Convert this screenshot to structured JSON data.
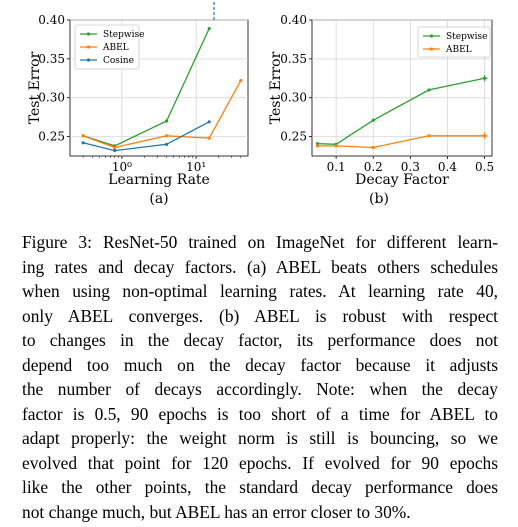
{
  "chart_data": [
    {
      "type": "line",
      "xscale": "log",
      "xlabel": "Learning Rate",
      "ylabel": "Test Error",
      "sublabel": "(a)",
      "ylim": [
        0.225,
        0.4
      ],
      "yticks": [
        "0.25",
        "0.30",
        "0.35",
        "0.40"
      ],
      "xticks": [
        "10⁰",
        "10¹"
      ],
      "grid": true,
      "legend": "top-left",
      "series": [
        {
          "name": "Stepwise",
          "color": "#2ca02c",
          "x": [
            0.3,
            0.8,
            4,
            15
          ],
          "y": [
            0.251,
            0.238,
            0.27,
            0.389
          ]
        },
        {
          "name": "ABEL",
          "color": "#ff7f0e",
          "x": [
            0.3,
            0.8,
            4,
            15,
            40
          ],
          "y": [
            0.251,
            0.236,
            0.251,
            0.248,
            0.322
          ]
        },
        {
          "name": "Cosine",
          "color": "#1f77b4",
          "x": [
            0.3,
            0.8,
            4,
            15
          ],
          "y": [
            0.242,
            0.232,
            0.24,
            0.269
          ]
        }
      ]
    },
    {
      "type": "line",
      "xlabel": "Decay Factor",
      "ylabel": "Test Error",
      "sublabel": "(b)",
      "ylim": [
        0.225,
        0.4
      ],
      "xlim": [
        0.035,
        0.52
      ],
      "yticks": [
        "0.25",
        "0.30",
        "0.35",
        "0.40"
      ],
      "xticks": [
        "0.1",
        "0.2",
        "0.3",
        "0.4",
        "0.5"
      ],
      "grid": true,
      "legend": "top-right",
      "series": [
        {
          "name": "Stepwise",
          "color": "#2ca02c",
          "x": [
            0.05,
            0.1,
            0.2,
            0.35,
            0.5
          ],
          "y": [
            0.241,
            0.24,
            0.271,
            0.31,
            0.325
          ]
        },
        {
          "name": "ABEL",
          "color": "#ff7f0e",
          "x": [
            0.05,
            0.1,
            0.2,
            0.35,
            0.5
          ],
          "y": [
            0.238,
            0.238,
            0.236,
            0.251,
            0.251
          ]
        }
      ]
    }
  ],
  "caption": {
    "line1": "Figure 3: ResNet-50 trained on ImageNet for different learn-",
    "line2": "ing rates and decay factors. (a) ABEL beats others schedules",
    "line3": "when using non-optimal learning rates. At learning rate 40,",
    "line4": "only ABEL converges. (b) ABEL is robust with respect",
    "line5": "to changes in the decay factor, its performance does not",
    "line6": "depend too much on the decay factor because it adjusts",
    "line7": "the number of decays accordingly. Note: when the decay",
    "line8": "factor is 0.5, 90 epochs is too short of a time for ABEL to",
    "line9": "adapt properly: the weight norm is still is bouncing, so we",
    "line10": "evolved that point for 120 epochs. If evolved for 90 epochs",
    "line11": "like the other points, the standard decay performance does",
    "line12": "not change much, but ABEL has an error closer to 30%."
  }
}
